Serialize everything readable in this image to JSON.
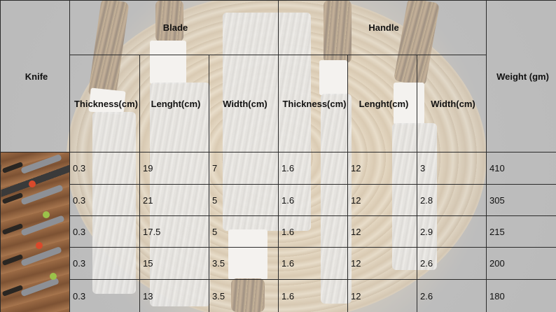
{
  "table": {
    "headers": {
      "knife": "Knife",
      "blade": "Blade",
      "handle": "Handle",
      "weight": "Weight (gm)",
      "blade_thickness": "Thickness(cm)",
      "blade_length": "Lenght(cm)",
      "blade_width": "Width(cm)",
      "handle_thickness": "Thickness(cm)",
      "handle_length": "Lenght(cm)",
      "handle_width": "Width(cm)"
    },
    "rows": [
      {
        "blade_thickness": "0.3",
        "blade_length": "19",
        "blade_width": "7",
        "handle_thickness": "1.6",
        "handle_length": "12",
        "handle_width": "3",
        "weight": "410"
      },
      {
        "blade_thickness": "0.3",
        "blade_length": "21",
        "blade_width": "5",
        "handle_thickness": "1.6",
        "handle_length": "12",
        "handle_width": "2.8",
        "weight": "305"
      },
      {
        "blade_thickness": "0.3",
        "blade_length": "17.5",
        "blade_width": "5",
        "handle_thickness": "1.6",
        "handle_length": "12",
        "handle_width": "2.9",
        "weight": "215"
      },
      {
        "blade_thickness": "0.3",
        "blade_length": "15",
        "blade_width": "3.5",
        "handle_thickness": "1.6",
        "handle_length": "12",
        "handle_width": "2.6",
        "weight": "200"
      },
      {
        "blade_thickness": "0.3",
        "blade_length": "13",
        "blade_width": "3.5",
        "handle_thickness": "1.6",
        "handle_length": "12",
        "handle_width": "2.6",
        "weight": "180"
      }
    ]
  }
}
